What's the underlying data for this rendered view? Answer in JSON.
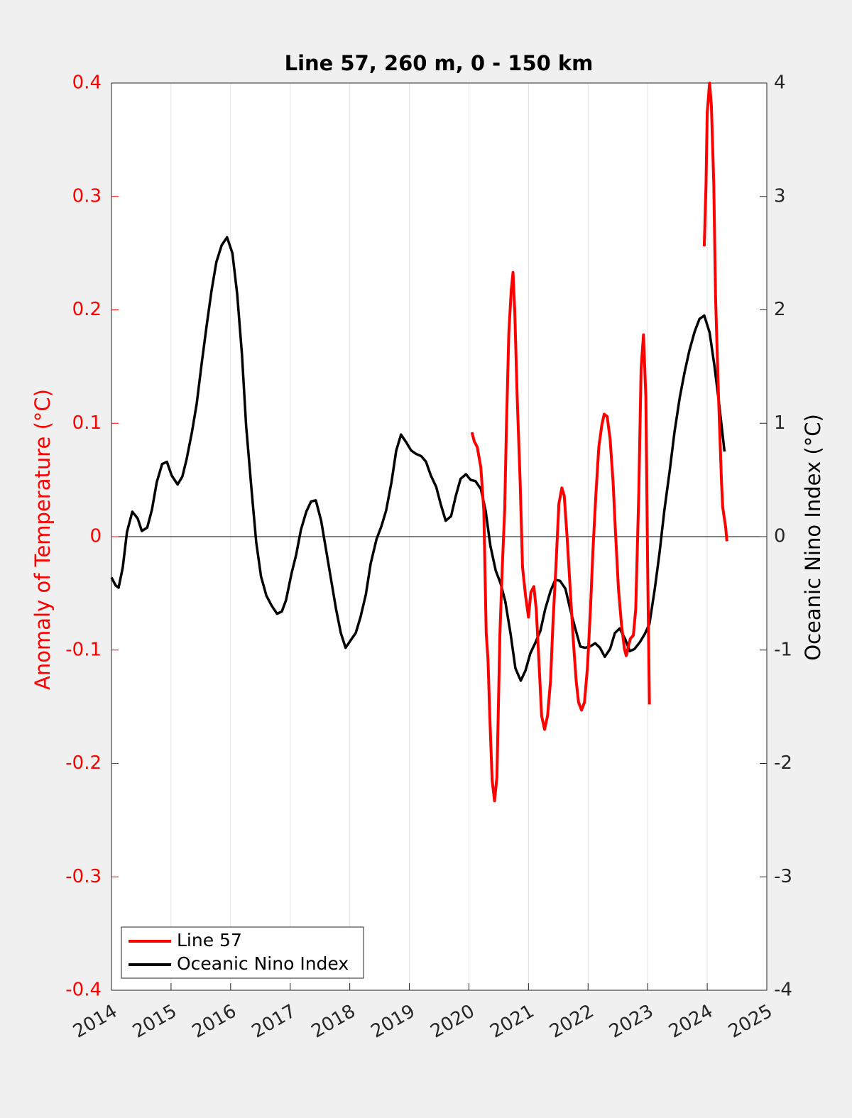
{
  "chart_data": {
    "type": "line",
    "title": "Line 57, 260 m, 0 - 150 km",
    "y_label": "Anomaly of Temperature (°C)",
    "y2_label": "Oceanic Nino Index (°C)",
    "xlim": [
      2014,
      2025
    ],
    "xticks": [
      2014,
      2015,
      2016,
      2017,
      2018,
      2019,
      2020,
      2021,
      2022,
      2023,
      2024,
      2025
    ],
    "ylim": [
      -0.4,
      0.4
    ],
    "yticks": [
      -0.4,
      -0.3,
      -0.2,
      -0.1,
      0,
      0.1,
      0.2,
      0.3,
      0.4
    ],
    "y2lim": [
      -4,
      4
    ],
    "y2ticks": [
      -4,
      -3,
      -2,
      -1,
      0,
      1,
      2,
      3,
      4
    ],
    "x_grid": true,
    "legend": "lower left",
    "series": [
      {
        "name": "Line 57",
        "color": "#ff0000",
        "axis": "y",
        "x": [
          2020.05,
          2020.09,
          2020.14,
          2020.2,
          2020.25,
          2020.29,
          2020.32,
          2020.35,
          2020.39,
          2020.43,
          2020.47,
          2020.52,
          2020.56,
          2020.6,
          2020.63,
          2020.67,
          2020.71,
          2020.74,
          2020.77,
          2020.81,
          2020.86,
          2020.9,
          2020.95,
          2021.0,
          2021.04,
          2021.09,
          2021.13,
          2021.18,
          2021.22,
          2021.27,
          2021.32,
          2021.37,
          2021.41,
          2021.46,
          2021.51,
          2021.56,
          2021.6,
          2021.65,
          2021.7,
          2021.75,
          2021.8,
          2021.84,
          2021.89,
          2021.94,
          2021.99,
          2022.04,
          2022.08,
          2022.13,
          2022.18,
          2022.23,
          2022.27,
          2022.32,
          2022.37,
          2022.42,
          2022.46,
          2022.51,
          2022.56,
          2022.61,
          2022.64,
          2022.68,
          2022.71,
          2022.76,
          2022.8,
          2022.85,
          2022.89,
          2022.93,
          2022.97,
          2023.0,
          2023.03,
          2023.5,
          2023.95,
          2023.98,
          2024.0,
          2024.04,
          2024.07,
          2024.11,
          2024.14,
          2024.19,
          2024.24,
          2024.26,
          2024.31,
          2024.33
        ],
        "values": [
          0.092,
          0.084,
          0.079,
          0.061,
          0.023,
          -0.085,
          -0.108,
          -0.158,
          -0.215,
          -0.233,
          -0.212,
          -0.086,
          -0.027,
          0.023,
          0.098,
          0.18,
          0.217,
          0.233,
          0.198,
          0.123,
          0.048,
          -0.027,
          -0.052,
          -0.071,
          -0.049,
          -0.044,
          -0.064,
          -0.115,
          -0.158,
          -0.17,
          -0.158,
          -0.127,
          -0.077,
          -0.027,
          0.029,
          0.043,
          0.036,
          -0.002,
          -0.046,
          -0.09,
          -0.127,
          -0.146,
          -0.153,
          -0.146,
          -0.115,
          -0.064,
          -0.014,
          0.036,
          0.079,
          0.098,
          0.108,
          0.106,
          0.086,
          0.048,
          0.004,
          -0.046,
          -0.077,
          -0.099,
          -0.105,
          -0.096,
          -0.09,
          -0.087,
          -0.064,
          0.036,
          0.148,
          0.178,
          0.123,
          -0.027,
          -0.148,
          null,
          0.256,
          0.311,
          0.374,
          0.4,
          0.38,
          0.311,
          0.211,
          0.123,
          0.048,
          0.026,
          0.008,
          -0.004
        ]
      },
      {
        "name": "Oceanic Nino Index",
        "color": "#000000",
        "axis": "y2",
        "x": [
          2014.0,
          2014.07,
          2014.12,
          2014.19,
          2014.26,
          2014.35,
          2014.44,
          2014.51,
          2014.6,
          2014.68,
          2014.76,
          2014.85,
          2014.93,
          2015.01,
          2015.11,
          2015.19,
          2015.26,
          2015.35,
          2015.43,
          2015.51,
          2015.6,
          2015.68,
          2015.76,
          2015.85,
          2015.94,
          2016.03,
          2016.11,
          2016.19,
          2016.26,
          2016.35,
          2016.43,
          2016.51,
          2016.6,
          2016.69,
          2016.78,
          2016.86,
          2016.93,
          2017.02,
          2017.1,
          2017.18,
          2017.27,
          2017.35,
          2017.43,
          2017.52,
          2017.6,
          2017.68,
          2017.77,
          2017.85,
          2017.93,
          2018.02,
          2018.1,
          2018.18,
          2018.27,
          2018.35,
          2018.45,
          2018.53,
          2018.61,
          2018.7,
          2018.78,
          2018.86,
          2018.95,
          2019.03,
          2019.11,
          2019.2,
          2019.28,
          2019.36,
          2019.45,
          2019.53,
          2019.61,
          2019.7,
          2019.78,
          2019.86,
          2019.95,
          2020.03,
          2020.11,
          2020.2,
          2020.28,
          2020.36,
          2020.45,
          2020.53,
          2020.61,
          2020.7,
          2020.78,
          2020.87,
          2020.95,
          2021.03,
          2021.12,
          2021.2,
          2021.28,
          2021.37,
          2021.45,
          2021.53,
          2021.62,
          2021.7,
          2021.78,
          2021.87,
          2021.95,
          2022.03,
          2022.12,
          2022.2,
          2022.28,
          2022.37,
          2022.45,
          2022.53,
          2022.62,
          2022.7,
          2022.78,
          2022.87,
          2022.95,
          2023.03,
          2023.12,
          2023.2,
          2023.28,
          2023.37,
          2023.45,
          2023.54,
          2023.62,
          2023.7,
          2023.79,
          2023.87,
          2023.95,
          2024.04,
          2024.12,
          2024.2,
          2024.29
        ],
        "values": [
          -0.36,
          -0.43,
          -0.45,
          -0.27,
          0.04,
          0.22,
          0.16,
          0.05,
          0.08,
          0.24,
          0.48,
          0.64,
          0.66,
          0.54,
          0.46,
          0.53,
          0.68,
          0.92,
          1.17,
          1.51,
          1.87,
          2.17,
          2.42,
          2.57,
          2.64,
          2.5,
          2.14,
          1.61,
          0.98,
          0.42,
          -0.05,
          -0.35,
          -0.52,
          -0.61,
          -0.68,
          -0.66,
          -0.56,
          -0.33,
          -0.16,
          0.06,
          0.22,
          0.31,
          0.32,
          0.14,
          -0.11,
          -0.36,
          -0.64,
          -0.85,
          -0.98,
          -0.91,
          -0.85,
          -0.71,
          -0.51,
          -0.24,
          -0.02,
          0.09,
          0.23,
          0.48,
          0.76,
          0.9,
          0.83,
          0.76,
          0.73,
          0.71,
          0.66,
          0.54,
          0.44,
          0.28,
          0.14,
          0.18,
          0.36,
          0.51,
          0.55,
          0.5,
          0.49,
          0.42,
          0.23,
          -0.08,
          -0.3,
          -0.41,
          -0.57,
          -0.86,
          -1.16,
          -1.27,
          -1.18,
          -1.03,
          -0.93,
          -0.83,
          -0.64,
          -0.48,
          -0.38,
          -0.39,
          -0.46,
          -0.64,
          -0.8,
          -0.97,
          -0.98,
          -0.97,
          -0.94,
          -0.98,
          -1.06,
          -0.99,
          -0.85,
          -0.81,
          -0.9,
          -1.01,
          -0.99,
          -0.93,
          -0.86,
          -0.77,
          -0.46,
          -0.14,
          0.23,
          0.58,
          0.92,
          1.23,
          1.45,
          1.64,
          1.81,
          1.92,
          1.95,
          1.8,
          1.51,
          1.17,
          0.75
        ]
      }
    ]
  }
}
